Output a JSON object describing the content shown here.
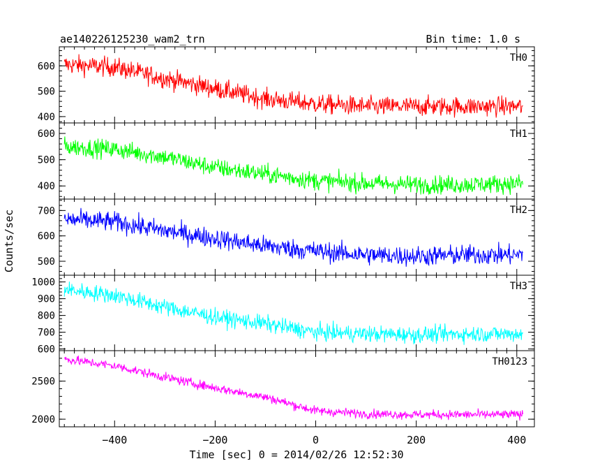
{
  "header": {
    "title": "ae140226125230_wam2_trn",
    "bin_time": "Bin time: 1.0 s"
  },
  "ylabel": "Counts/sec",
  "xlabel": "Time [sec] 0 = 2014/02/26 12:52:30",
  "chart_data": {
    "type": "line",
    "title": "ae140226125230_wam2_trn",
    "xlabel": "Time [sec] 0 = 2014/02/26 12:52:30",
    "ylabel": "Counts/sec",
    "xlim": [
      -510,
      435
    ],
    "x_ticks": [
      -400,
      -200,
      0,
      200,
      400
    ],
    "x_range": [
      -500,
      412
    ],
    "bin_seconds": 1.0,
    "panels": [
      {
        "name": "TH0",
        "color": "#ff0000",
        "ylim": [
          375,
          675
        ],
        "y_ticks": [
          400,
          500,
          600
        ],
        "trend": {
          "x": [
            -500,
            -400,
            -300,
            -200,
            -100,
            0,
            100,
            200,
            300,
            412
          ],
          "y": [
            605,
            595,
            550,
            510,
            470,
            450,
            440,
            440,
            440,
            440
          ]
        },
        "noise": 35
      },
      {
        "name": "TH1",
        "color": "#00ff00",
        "ylim": [
          350,
          640
        ],
        "y_ticks": [
          400,
          500,
          600
        ],
        "trend": {
          "x": [
            -500,
            -400,
            -300,
            -200,
            -100,
            0,
            100,
            200,
            300,
            412
          ],
          "y": [
            550,
            540,
            510,
            470,
            445,
            420,
            410,
            405,
            405,
            410
          ]
        },
        "noise": 32
      },
      {
        "name": "TH2",
        "color": "#0000ff",
        "ylim": [
          445,
          745
        ],
        "y_ticks": [
          500,
          600,
          700
        ],
        "trend": {
          "x": [
            -500,
            -400,
            -300,
            -200,
            -100,
            0,
            100,
            200,
            300,
            412
          ],
          "y": [
            665,
            655,
            620,
            590,
            560,
            540,
            525,
            520,
            525,
            525
          ]
        },
        "noise": 36
      },
      {
        "name": "TH3",
        "color": "#00ffff",
        "ylim": [
          590,
          1040
        ],
        "y_ticks": [
          600,
          700,
          800,
          900,
          1000
        ],
        "trend": {
          "x": [
            -500,
            -400,
            -300,
            -200,
            -100,
            0,
            100,
            200,
            300,
            412
          ],
          "y": [
            955,
            920,
            850,
            790,
            750,
            700,
            690,
            685,
            690,
            690
          ]
        },
        "noise": 45
      },
      {
        "name": "TH0123",
        "color": "#ff00ff",
        "ylim": [
          1900,
          2900
        ],
        "y_ticks": [
          2000,
          2500
        ],
        "trend": {
          "x": [
            -500,
            -400,
            -300,
            -200,
            -100,
            0,
            100,
            200,
            300,
            412
          ],
          "y": [
            2790,
            2700,
            2550,
            2410,
            2290,
            2110,
            2070,
            2060,
            2060,
            2060
          ]
        },
        "noise": 55
      }
    ]
  }
}
